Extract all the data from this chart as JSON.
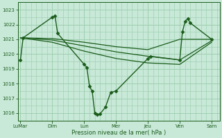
{
  "xlabel": "Pression niveau de la mer( hPa )",
  "bg_color": "#c8e8d8",
  "grid_color": "#99ccaa",
  "line_color": "#1a5c1a",
  "ylim": [
    1015.5,
    1023.5
  ],
  "yticks": [
    1016,
    1017,
    1018,
    1019,
    1020,
    1021,
    1022,
    1023
  ],
  "x_labels": [
    "LuMar",
    "Dim",
    "Lun",
    "Mer",
    "Jeu",
    "Ven",
    "Sam"
  ],
  "x_positions": [
    0,
    6,
    12,
    18,
    24,
    30,
    36
  ],
  "xlim": [
    -0.5,
    37.5
  ],
  "lines": [
    {
      "x": [
        0,
        0.5,
        6,
        6.5,
        7,
        12,
        12.5,
        13,
        13.5,
        14,
        14.5,
        15,
        16,
        17,
        18,
        24,
        24.5,
        30,
        30.5,
        31,
        31.5,
        32,
        36
      ],
      "y": [
        1019.6,
        1021.1,
        1022.5,
        1022.6,
        1021.4,
        1019.3,
        1019.1,
        1017.8,
        1017.5,
        1016.0,
        1015.9,
        1015.95,
        1016.4,
        1017.4,
        1017.5,
        1019.7,
        1019.85,
        1019.6,
        1021.5,
        1022.2,
        1022.4,
        1022.1,
        1021.0
      ],
      "marker": "D",
      "ms": 2.5,
      "lw": 1.0
    },
    {
      "x": [
        0,
        6,
        12,
        18,
        24,
        30,
        36
      ],
      "y": [
        1021.1,
        1021.05,
        1020.8,
        1020.5,
        1020.3,
        1021.0,
        1021.0
      ],
      "marker": null,
      "ms": 0,
      "lw": 0.9
    },
    {
      "x": [
        0,
        6,
        12,
        18,
        24,
        30,
        36
      ],
      "y": [
        1021.1,
        1020.95,
        1020.55,
        1020.15,
        1019.85,
        1019.6,
        1020.9
      ],
      "marker": null,
      "ms": 0,
      "lw": 0.9
    },
    {
      "x": [
        0,
        6,
        12,
        18,
        24,
        30,
        36
      ],
      "y": [
        1021.1,
        1020.8,
        1020.2,
        1019.7,
        1019.4,
        1019.3,
        1020.8
      ],
      "marker": null,
      "ms": 0,
      "lw": 0.9
    }
  ]
}
